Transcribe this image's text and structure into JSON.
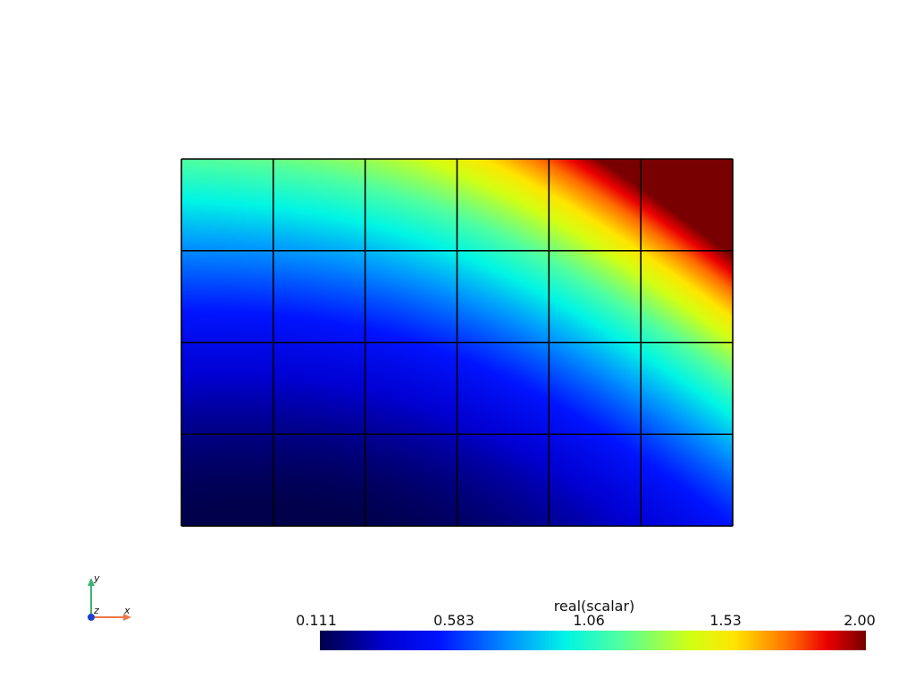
{
  "scalar_bar": {
    "title": "real(scalar)",
    "ticks": [
      "0.111",
      "0.583",
      "1.06",
      "1.53",
      "2.00"
    ],
    "range": [
      0.111,
      2.0
    ]
  },
  "mesh": {
    "columns": 6,
    "rows": 4,
    "edge_color": "#000000"
  },
  "axes_widget": {
    "x_label": "x",
    "y_label": "y",
    "z_label": "z",
    "x_color": "#f07848",
    "y_color": "#3cb371",
    "z_color": "#1f3fd4"
  }
}
